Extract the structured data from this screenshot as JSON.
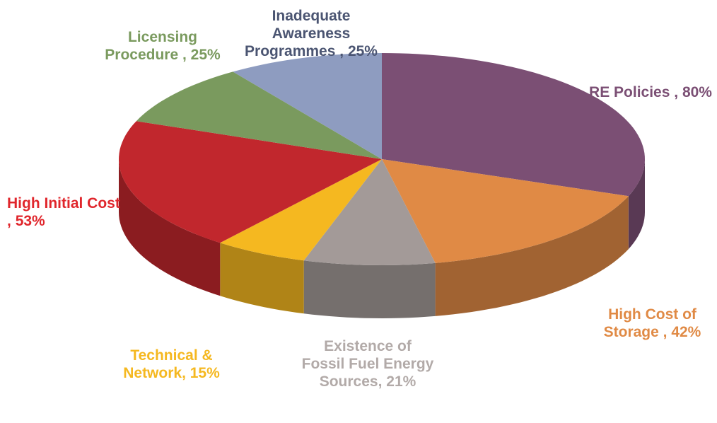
{
  "chart_data": {
    "type": "pie",
    "categories": [
      "RE Policies ,",
      "High Cost of Storage ,",
      "Existence of Fossil Fuel Energy Sources,",
      "Technical & Network,",
      "High Initial Cost ,",
      "Licensing Procedure ,",
      "Inadequate Awareness Programmes ,"
    ],
    "values": [
      80,
      42,
      21,
      15,
      53,
      25,
      25
    ],
    "value_labels": [
      "80%",
      "42%",
      "21%",
      "15%",
      "53%",
      "25%",
      "25%"
    ],
    "colors": [
      "#7b4f74",
      "#e08a45",
      "#a39a98",
      "#f5b820",
      "#c1272d",
      "#7a9a5e",
      "#8e9cc0"
    ]
  }
}
